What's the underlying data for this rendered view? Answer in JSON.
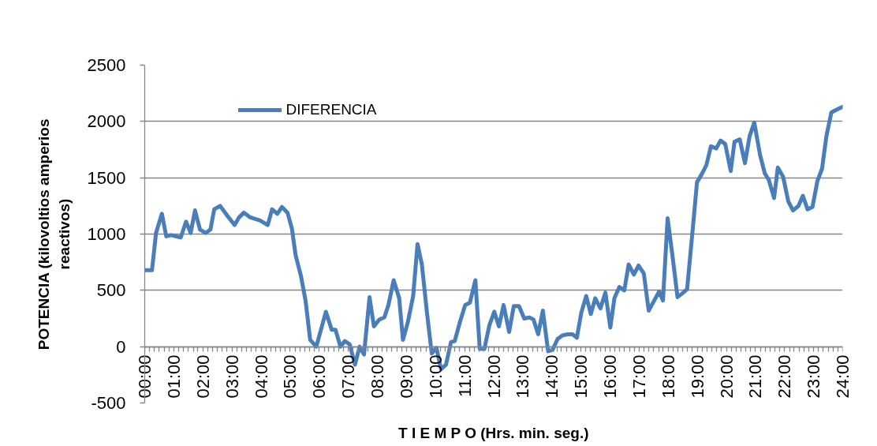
{
  "chart_data": {
    "type": "line",
    "xlabel": "T I E M P O (Hrs. min. seg.)",
    "ylabel": "POTENCIA (kilovoltios amperios reactivos)",
    "x": [
      0,
      0.25,
      0.39,
      0.59,
      0.74,
      0.9,
      1.24,
      1.42,
      1.58,
      1.73,
      1.9,
      2.1,
      2.26,
      2.39,
      2.59,
      2.85,
      3.09,
      3.25,
      3.41,
      3.61,
      3.97,
      4.23,
      4.38,
      4.56,
      4.72,
      4.91,
      5.06,
      5.19,
      5.37,
      5.53,
      5.69,
      5.9,
      6.23,
      6.43,
      6.56,
      6.73,
      6.88,
      7.05,
      7.23,
      7.39,
      7.54,
      7.73,
      7.88,
      8.06,
      8.24,
      8.38,
      8.56,
      8.75,
      8.88,
      9.05,
      9.23,
      9.38,
      9.53,
      9.71,
      9.87,
      10.03,
      10.19,
      10.36,
      10.53,
      10.66,
      10.84,
      11.02,
      11.18,
      11.37,
      11.52,
      11.68,
      11.85,
      12.02,
      12.18,
      12.34,
      12.53,
      12.69,
      12.87,
      13.05,
      13.23,
      13.37,
      13.53,
      13.69,
      13.87,
      14.02,
      14.2,
      14.36,
      14.54,
      14.71,
      14.86,
      15.01,
      15.18,
      15.34,
      15.49,
      15.67,
      15.84,
      16.01,
      16.15,
      16.32,
      16.49,
      16.64,
      16.82,
      16.98,
      17.16,
      17.33,
      17.52,
      17.69,
      17.82,
      17.98,
      18.16,
      18.32,
      18.47,
      18.65,
      18.86,
      18.99,
      19.15,
      19.31,
      19.47,
      19.65,
      19.8,
      19.96,
      20.15,
      20.28,
      20.46,
      20.64,
      20.8,
      20.96,
      21.16,
      21.32,
      21.46,
      21.64,
      21.77,
      21.95,
      22.13,
      22.29,
      22.48,
      22.63,
      22.79,
      22.96,
      23.13,
      23.29,
      23.44,
      23.61,
      23.76,
      24
    ],
    "series": [
      {
        "name": "DIFERENCIA",
        "color": "#4a7ebb",
        "values": [
          680,
          680,
          1010,
          1180,
          980,
          990,
          970,
          1110,
          1010,
          1210,
          1040,
          1010,
          1040,
          1220,
          1250,
          1160,
          1080,
          1150,
          1190,
          1150,
          1120,
          1080,
          1220,
          1180,
          1240,
          1190,
          1050,
          810,
          630,
          410,
          60,
          0,
          310,
          150,
          150,
          0,
          50,
          20,
          -160,
          0,
          -70,
          440,
          180,
          240,
          260,
          370,
          590,
          430,
          60,
          220,
          450,
          910,
          730,
          290,
          -60,
          -10,
          -200,
          -160,
          40,
          50,
          220,
          370,
          390,
          590,
          -20,
          -20,
          190,
          310,
          180,
          370,
          130,
          360,
          360,
          250,
          260,
          240,
          110,
          320,
          -40,
          -30,
          70,
          100,
          110,
          110,
          80,
          300,
          450,
          290,
          430,
          340,
          480,
          170,
          430,
          530,
          500,
          730,
          640,
          720,
          650,
          320,
          410,
          490,
          410,
          1140,
          780,
          440,
          470,
          510,
          1090,
          1460,
          1530,
          1610,
          1780,
          1760,
          1830,
          1800,
          1560,
          1820,
          1840,
          1630,
          1870,
          1990,
          1700,
          1540,
          1480,
          1320,
          1590,
          1510,
          1290,
          1210,
          1250,
          1340,
          1220,
          1240,
          1470,
          1580,
          1870,
          2080,
          2100,
          2130
        ]
      }
    ],
    "xlim": [
      0,
      24
    ],
    "xticks": [
      {
        "value": 0,
        "label": "00:00"
      },
      {
        "value": 0.17,
        "label": null
      },
      {
        "value": 0.33,
        "label": null
      },
      {
        "value": 0.5,
        "label": null
      },
      {
        "value": 0.67,
        "label": null
      },
      {
        "value": 0.83,
        "label": null
      },
      {
        "value": 1,
        "label": "01:00"
      },
      {
        "value": 1.17,
        "label": null
      },
      {
        "value": 1.33,
        "label": null
      },
      {
        "value": 1.5,
        "label": null
      },
      {
        "value": 1.67,
        "label": null
      },
      {
        "value": 1.83,
        "label": null
      },
      {
        "value": 2,
        "label": "02:00"
      },
      {
        "value": 2.17,
        "label": null
      },
      {
        "value": 2.33,
        "label": null
      },
      {
        "value": 2.5,
        "label": null
      },
      {
        "value": 2.67,
        "label": null
      },
      {
        "value": 2.83,
        "label": null
      },
      {
        "value": 3,
        "label": "03:00"
      },
      {
        "value": 3.17,
        "label": null
      },
      {
        "value": 3.33,
        "label": null
      },
      {
        "value": 3.5,
        "label": null
      },
      {
        "value": 3.67,
        "label": null
      },
      {
        "value": 3.83,
        "label": null
      },
      {
        "value": 4,
        "label": "04:00"
      },
      {
        "value": 4.17,
        "label": null
      },
      {
        "value": 4.33,
        "label": null
      },
      {
        "value": 4.5,
        "label": null
      },
      {
        "value": 4.67,
        "label": null
      },
      {
        "value": 4.83,
        "label": null
      },
      {
        "value": 5,
        "label": "05:00"
      },
      {
        "value": 5.17,
        "label": null
      },
      {
        "value": 5.33,
        "label": null
      },
      {
        "value": 5.5,
        "label": null
      },
      {
        "value": 5.67,
        "label": null
      },
      {
        "value": 5.83,
        "label": null
      },
      {
        "value": 6,
        "label": "06:00"
      },
      {
        "value": 6.17,
        "label": null
      },
      {
        "value": 6.33,
        "label": null
      },
      {
        "value": 6.5,
        "label": null
      },
      {
        "value": 6.67,
        "label": null
      },
      {
        "value": 6.83,
        "label": null
      },
      {
        "value": 7,
        "label": "07:00"
      },
      {
        "value": 7.17,
        "label": null
      },
      {
        "value": 7.33,
        "label": null
      },
      {
        "value": 7.5,
        "label": null
      },
      {
        "value": 7.67,
        "label": null
      },
      {
        "value": 7.83,
        "label": null
      },
      {
        "value": 8,
        "label": "08:00"
      },
      {
        "value": 8.17,
        "label": null
      },
      {
        "value": 8.33,
        "label": null
      },
      {
        "value": 8.5,
        "label": null
      },
      {
        "value": 8.67,
        "label": null
      },
      {
        "value": 8.83,
        "label": null
      },
      {
        "value": 9,
        "label": "09:00"
      },
      {
        "value": 9.17,
        "label": null
      },
      {
        "value": 9.33,
        "label": null
      },
      {
        "value": 9.5,
        "label": null
      },
      {
        "value": 9.67,
        "label": null
      },
      {
        "value": 9.83,
        "label": null
      },
      {
        "value": 10,
        "label": "10:00"
      },
      {
        "value": 10.17,
        "label": null
      },
      {
        "value": 10.33,
        "label": null
      },
      {
        "value": 10.5,
        "label": null
      },
      {
        "value": 10.67,
        "label": null
      },
      {
        "value": 10.83,
        "label": null
      },
      {
        "value": 11,
        "label": "11:00"
      },
      {
        "value": 11.17,
        "label": null
      },
      {
        "value": 11.33,
        "label": null
      },
      {
        "value": 11.5,
        "label": null
      },
      {
        "value": 11.67,
        "label": null
      },
      {
        "value": 11.83,
        "label": null
      },
      {
        "value": 12,
        "label": "12:00"
      },
      {
        "value": 12.17,
        "label": null
      },
      {
        "value": 12.33,
        "label": null
      },
      {
        "value": 12.5,
        "label": null
      },
      {
        "value": 12.67,
        "label": null
      },
      {
        "value": 12.83,
        "label": null
      },
      {
        "value": 13,
        "label": "13:00"
      },
      {
        "value": 13.17,
        "label": null
      },
      {
        "value": 13.33,
        "label": null
      },
      {
        "value": 13.5,
        "label": null
      },
      {
        "value": 13.67,
        "label": null
      },
      {
        "value": 13.83,
        "label": null
      },
      {
        "value": 14,
        "label": "14:00"
      },
      {
        "value": 14.17,
        "label": null
      },
      {
        "value": 14.33,
        "label": null
      },
      {
        "value": 14.5,
        "label": null
      },
      {
        "value": 14.67,
        "label": null
      },
      {
        "value": 14.83,
        "label": null
      },
      {
        "value": 15,
        "label": "15:00"
      },
      {
        "value": 15.17,
        "label": null
      },
      {
        "value": 15.33,
        "label": null
      },
      {
        "value": 15.5,
        "label": null
      },
      {
        "value": 15.67,
        "label": null
      },
      {
        "value": 15.83,
        "label": null
      },
      {
        "value": 16,
        "label": "16:00"
      },
      {
        "value": 16.17,
        "label": null
      },
      {
        "value": 16.33,
        "label": null
      },
      {
        "value": 16.5,
        "label": null
      },
      {
        "value": 16.67,
        "label": null
      },
      {
        "value": 16.83,
        "label": null
      },
      {
        "value": 17,
        "label": "17:00"
      },
      {
        "value": 17.17,
        "label": null
      },
      {
        "value": 17.33,
        "label": null
      },
      {
        "value": 17.5,
        "label": null
      },
      {
        "value": 17.67,
        "label": null
      },
      {
        "value": 17.83,
        "label": null
      },
      {
        "value": 18,
        "label": "18:00"
      },
      {
        "value": 18.17,
        "label": null
      },
      {
        "value": 18.33,
        "label": null
      },
      {
        "value": 18.5,
        "label": null
      },
      {
        "value": 18.67,
        "label": null
      },
      {
        "value": 18.83,
        "label": null
      },
      {
        "value": 19,
        "label": "19:00"
      },
      {
        "value": 19.17,
        "label": null
      },
      {
        "value": 19.33,
        "label": null
      },
      {
        "value": 19.5,
        "label": null
      },
      {
        "value": 19.67,
        "label": null
      },
      {
        "value": 19.83,
        "label": null
      },
      {
        "value": 20,
        "label": "20:00"
      },
      {
        "value": 20.17,
        "label": null
      },
      {
        "value": 20.33,
        "label": null
      },
      {
        "value": 20.5,
        "label": null
      },
      {
        "value": 20.67,
        "label": null
      },
      {
        "value": 20.83,
        "label": null
      },
      {
        "value": 21,
        "label": "21:00"
      },
      {
        "value": 21.17,
        "label": null
      },
      {
        "value": 21.33,
        "label": null
      },
      {
        "value": 21.5,
        "label": null
      },
      {
        "value": 21.67,
        "label": null
      },
      {
        "value": 21.83,
        "label": null
      },
      {
        "value": 22,
        "label": "22:00"
      },
      {
        "value": 22.17,
        "label": null
      },
      {
        "value": 22.33,
        "label": null
      },
      {
        "value": 22.5,
        "label": null
      },
      {
        "value": 22.67,
        "label": null
      },
      {
        "value": 22.83,
        "label": null
      },
      {
        "value": 23,
        "label": "23:00"
      },
      {
        "value": 23.17,
        "label": null
      },
      {
        "value": 23.33,
        "label": null
      },
      {
        "value": 23.5,
        "label": null
      },
      {
        "value": 23.67,
        "label": null
      },
      {
        "value": 23.83,
        "label": null
      },
      {
        "value": 24,
        "label": "24:00"
      }
    ],
    "ylim": [
      -500,
      2500
    ],
    "yticks": [
      -500,
      0,
      500,
      1000,
      1500,
      2000,
      2500
    ],
    "grid": "y",
    "legend": "top left",
    "line_style": "solid"
  }
}
